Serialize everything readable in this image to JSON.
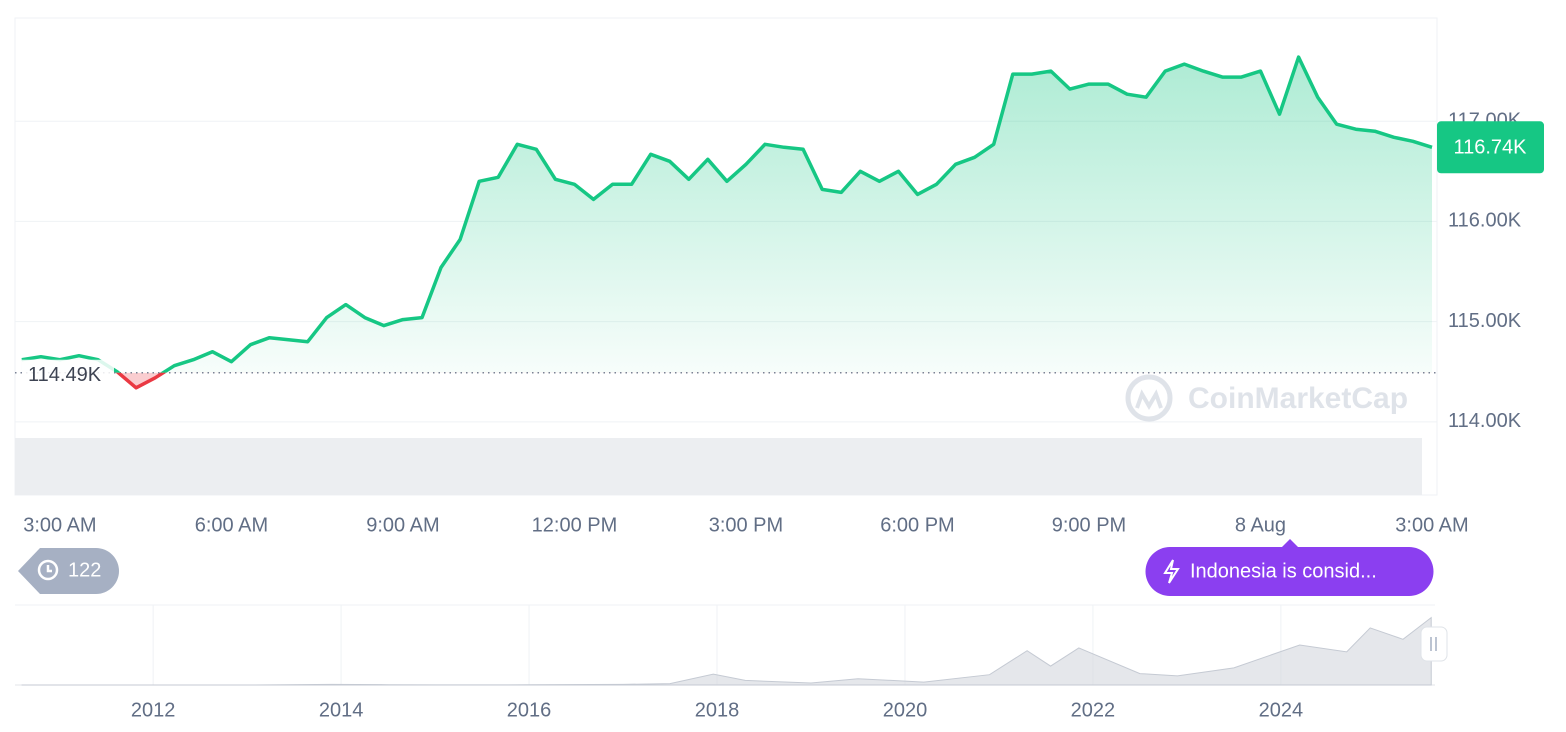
{
  "chart_data": [
    {
      "type": "line",
      "categories": [
        null,
        null,
        "3:00 AM",
        null,
        null,
        null,
        null,
        null,
        null,
        null,
        null,
        "6:00 AM",
        null,
        null,
        null,
        null,
        null,
        null,
        null,
        null,
        "9:00 AM",
        null,
        null,
        null,
        null,
        null,
        null,
        null,
        null,
        "12:00 PM",
        null,
        null,
        null,
        null,
        null,
        null,
        null,
        null,
        "3:00 PM",
        null,
        null,
        null,
        null,
        null,
        null,
        null,
        null,
        "6:00 PM",
        null,
        null,
        null,
        null,
        null,
        null,
        null,
        null,
        "9:00 PM",
        null,
        null,
        null,
        null,
        null,
        null,
        null,
        null,
        "8 Aug",
        null,
        null,
        null,
        null,
        null,
        null,
        null,
        null,
        "3:00 AM"
      ],
      "values": [
        114620,
        114650,
        114620,
        114660,
        114620,
        114500,
        114340,
        114440,
        114560,
        114620,
        114700,
        114600,
        114770,
        114840,
        114820,
        114800,
        115040,
        115170,
        115040,
        114960,
        115020,
        115040,
        115540,
        115820,
        116400,
        116440,
        116770,
        116720,
        116420,
        116370,
        116220,
        116370,
        116370,
        116670,
        116600,
        116420,
        116620,
        116400,
        116570,
        116770,
        116740,
        116720,
        116320,
        116290,
        116500,
        116400,
        116500,
        116270,
        116370,
        116570,
        116640,
        116770,
        117470,
        117470,
        117500,
        117320,
        117370,
        117370,
        117270,
        117240,
        117500,
        117570,
        117500,
        117440,
        117440,
        117500,
        117070,
        117640,
        117240,
        116970,
        116920,
        116900,
        116840,
        116800,
        116740
      ],
      "color": "#16c784",
      "down_color": "#ea3943",
      "ylim": [
        113270,
        118030
      ],
      "yticks": [
        {
          "value": 114000,
          "label": "114.00K"
        },
        {
          "value": 115000,
          "label": "115.00K"
        },
        {
          "value": 116000,
          "label": "116.00K"
        },
        {
          "value": 117000,
          "label": "117.00K"
        }
      ],
      "grid": true,
      "reference_line": {
        "value": 114490,
        "label": "114.49K"
      },
      "last_price": {
        "value": 116740,
        "label": "116.74K"
      }
    },
    {
      "type": "area",
      "x": [
        2010.6,
        2011.5,
        2012,
        2013,
        2013.9,
        2014.5,
        2015,
        2016,
        2017,
        2017.5,
        2017.96,
        2018.3,
        2019,
        2019.5,
        2020.2,
        2020.9,
        2021.3,
        2021.55,
        2021.85,
        2022.5,
        2022.9,
        2023.5,
        2024.2,
        2024.7,
        2024.95,
        2025.3,
        2025.6
      ],
      "values": [
        0.1,
        15,
        5,
        15,
        1000,
        600,
        250,
        400,
        1000,
        2500,
        19000,
        8000,
        3500,
        11000,
        5000,
        18000,
        60000,
        33000,
        65000,
        20000,
        16000,
        30000,
        70000,
        58000,
        100000,
        80000,
        118000
      ],
      "color": "#d3d7de",
      "xlim": [
        2010.53,
        2025.64
      ],
      "ylim": [
        0,
        140000
      ],
      "xticks": [
        2012,
        2014,
        2016,
        2018,
        2020,
        2022,
        2024
      ],
      "grid": true
    }
  ],
  "overlay": {
    "history_count": 122,
    "news_headline": "Indonesia is consid...",
    "watermark": "CoinMarketCap"
  }
}
